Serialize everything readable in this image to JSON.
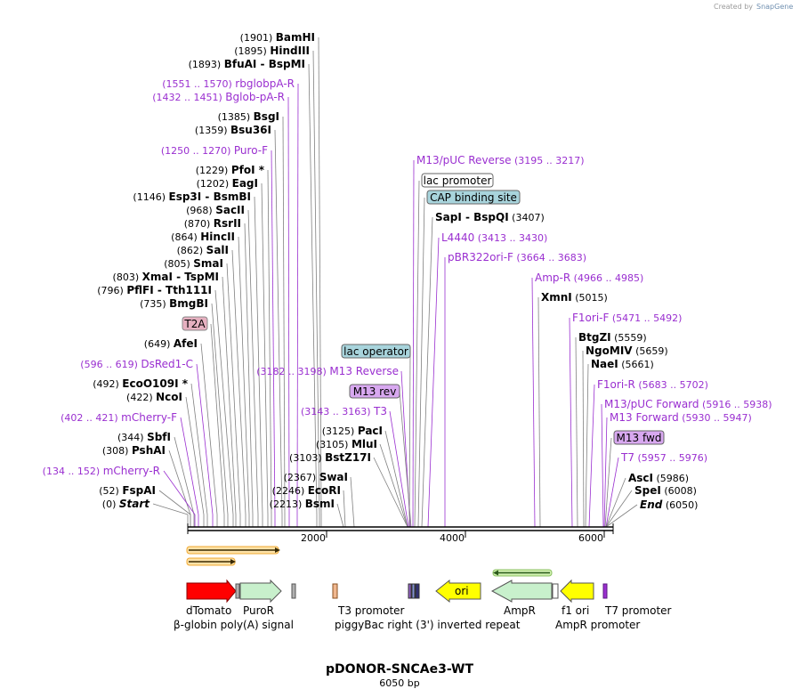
{
  "header": {
    "credit_text": "Created by",
    "credit_brand": "SnapGene"
  },
  "title": "pDONOR-SNCAe3-WT",
  "subtitle": "6050 bp",
  "axis": {
    "ticks": [
      "2000",
      "4000",
      "6000"
    ]
  },
  "left_labels": [
    {
      "pos": "(1901)",
      "name": "BamHI",
      "kind": "enzyme"
    },
    {
      "pos": "(1895)",
      "name": "HindIII",
      "kind": "enzyme"
    },
    {
      "pos": "(1893)",
      "name": "BfuAI",
      "name2": "BspMI",
      "kind": "enzyme"
    },
    {
      "pos": "(1551 .. 1570)",
      "name": "rbglobpA-R",
      "kind": "primer"
    },
    {
      "pos": "(1432 .. 1451)",
      "name": "Bglob-pA-R",
      "kind": "primer"
    },
    {
      "pos": "(1385)",
      "name": "BsgI",
      "kind": "enzyme"
    },
    {
      "pos": "(1359)",
      "name": "Bsu36I",
      "kind": "enzyme"
    },
    {
      "pos": "(1250 .. 1270)",
      "name": "Puro-F",
      "kind": "primer"
    },
    {
      "pos": "(1229)",
      "name": "PfoI *",
      "kind": "enzyme"
    },
    {
      "pos": "(1202)",
      "name": "EagI",
      "kind": "enzyme"
    },
    {
      "pos": "(1146)",
      "name": "Esp3I",
      "name2": "BsmBI",
      "kind": "enzyme"
    },
    {
      "pos": "(968)",
      "name": "SacII",
      "kind": "enzyme"
    },
    {
      "pos": "(870)",
      "name": "RsrII",
      "kind": "enzyme"
    },
    {
      "pos": "(864)",
      "name": "HincII",
      "kind": "enzyme"
    },
    {
      "pos": "(862)",
      "name": "SalI",
      "kind": "enzyme"
    },
    {
      "pos": "(805)",
      "name": "SmaI",
      "kind": "enzyme"
    },
    {
      "pos": "(803)",
      "name": "XmaI",
      "name2": "TspMI",
      "kind": "enzyme"
    },
    {
      "pos": "(796)",
      "name": "PflFI",
      "name2": "Tth111I",
      "kind": "enzyme"
    },
    {
      "pos": "(735)",
      "name": "BmgBI",
      "kind": "enzyme"
    },
    {
      "pos": "",
      "name": "T2A",
      "kind": "feature_box"
    },
    {
      "pos": "(649)",
      "name": "AfeI",
      "kind": "enzyme"
    },
    {
      "pos": "(596 .. 619)",
      "name": "DsRed1-C",
      "kind": "primer"
    },
    {
      "pos": "(492)",
      "name": "EcoO109I *",
      "kind": "enzyme"
    },
    {
      "pos": "(422)",
      "name": "NcoI",
      "kind": "enzyme"
    },
    {
      "pos": "(402 .. 421)",
      "name": "mCherry-F",
      "kind": "primer"
    },
    {
      "pos": "(344)",
      "name": "SbfI",
      "kind": "enzyme"
    },
    {
      "pos": "(308)",
      "name": "PshAI",
      "kind": "enzyme"
    },
    {
      "pos": "(134 .. 152)",
      "name": "mCherry-R",
      "kind": "primer"
    },
    {
      "pos": "(52)",
      "name": "FspAI",
      "kind": "enzyme"
    },
    {
      "pos": "(0)",
      "name": "Start",
      "kind": "italic"
    }
  ],
  "mid_labels": [
    {
      "pos": "(3182 .. 3198)",
      "name": "M13 Reverse",
      "kind": "primer"
    },
    {
      "pos": "(3143 .. 3163)",
      "name": "T3",
      "kind": "primer"
    },
    {
      "pos": "(3125)",
      "name": "PacI",
      "kind": "enzyme"
    },
    {
      "pos": "(3105)",
      "name": "MluI",
      "kind": "enzyme"
    },
    {
      "pos": "(3103)",
      "name": "BstZ17I",
      "kind": "enzyme"
    },
    {
      "pos": "(2367)",
      "name": "SwaI",
      "kind": "enzyme"
    },
    {
      "pos": "(2246)",
      "name": "EcoRI",
      "kind": "enzyme"
    },
    {
      "pos": "(2213)",
      "name": "BsmI",
      "kind": "enzyme"
    }
  ],
  "mid_boxes": [
    {
      "name": "lac operator",
      "style": "teal"
    },
    {
      "name": "M13 rev",
      "style": "violet"
    }
  ],
  "right_labels": [
    {
      "name": "M13/pUC Reverse",
      "pos": "(3195 .. 3217)",
      "kind": "primer"
    },
    {
      "name": "lac promoter",
      "pos": "",
      "kind": "box_white"
    },
    {
      "name": "CAP binding site",
      "pos": "",
      "kind": "box_teal"
    },
    {
      "name": "SapI",
      "name2": "BspQI",
      "pos": "(3407)",
      "kind": "enzyme"
    },
    {
      "name": "L4440",
      "pos": "(3413 .. 3430)",
      "kind": "primer"
    },
    {
      "name": "pBR322ori-F",
      "pos": "(3664 .. 3683)",
      "kind": "primer"
    },
    {
      "name": "Amp-R",
      "pos": "(4966 .. 4985)",
      "kind": "primer"
    },
    {
      "name": "XmnI",
      "pos": "(5015)",
      "kind": "enzyme"
    },
    {
      "name": "F1ori-F",
      "pos": "(5471 .. 5492)",
      "kind": "primer"
    },
    {
      "name": "BtgZI",
      "pos": "(5559)",
      "kind": "enzyme"
    },
    {
      "name": "NgoMIV",
      "pos": "(5659)",
      "kind": "enzyme"
    },
    {
      "name": "NaeI",
      "pos": "(5661)",
      "kind": "enzyme"
    },
    {
      "name": "F1ori-R",
      "pos": "(5683 .. 5702)",
      "kind": "primer"
    },
    {
      "name": "M13/pUC Forward",
      "pos": "(5916 .. 5938)",
      "kind": "primer"
    },
    {
      "name": "M13 Forward",
      "pos": "(5930 .. 5947)",
      "kind": "primer"
    },
    {
      "name": "M13 fwd",
      "pos": "",
      "kind": "box_violet"
    },
    {
      "name": "T7",
      "pos": "(5957 .. 5976)",
      "kind": "primer"
    },
    {
      "name": "AscI",
      "pos": "(5986)",
      "kind": "enzyme"
    },
    {
      "name": "SpeI",
      "pos": "(6008)",
      "kind": "enzyme"
    },
    {
      "name": "End",
      "pos": "(6050)",
      "kind": "italic"
    }
  ],
  "features": [
    {
      "name": "dTomato"
    },
    {
      "name": "PuroR"
    },
    {
      "name": "β-globin poly(A) signal"
    },
    {
      "name": "T3 promoter"
    },
    {
      "name": "piggyBac right (3') inverted repeat"
    },
    {
      "name": "ori"
    },
    {
      "name": "AmpR"
    },
    {
      "name": "f1 ori"
    },
    {
      "name": "AmpR promoter"
    },
    {
      "name": "T7 promoter"
    }
  ],
  "colors": {
    "primer": "#9a2fd0",
    "teal_box": "#a8d4dc",
    "violet_box": "#d8a8f0",
    "pink_box": "#e6b0c0",
    "dTomato": "#ff0000",
    "PuroR": "#c8f0cc",
    "ori": "#ffff00",
    "AmpR": "#c8f0cc",
    "f1ori": "#ffff00"
  }
}
